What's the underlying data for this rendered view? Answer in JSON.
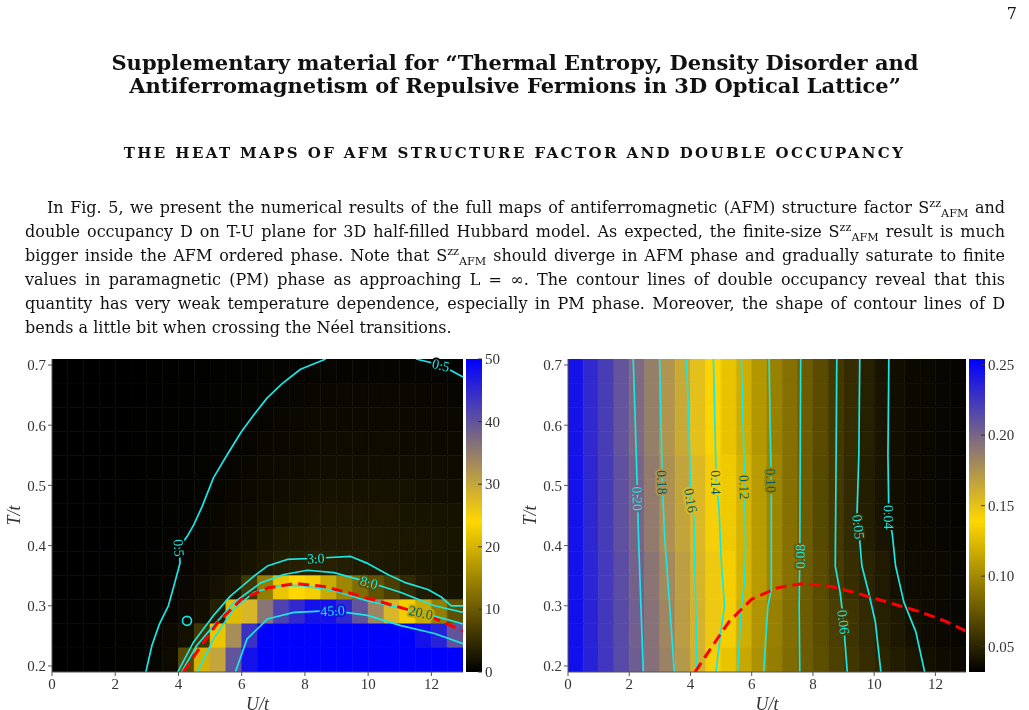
{
  "chart_data": [
    {
      "type": "heatmap",
      "title": "Supplementary material for “Thermal Entropy, Density Disorder and Antiferromagnetism of Repulsive Fermions in 3D Optical Lattice”",
      "subtitle": "THE HEAT MAPS OF AFM STRUCTURE FACTOR AND DOUBLE OCCUPANCY",
      "annotations": [
        "7",
        "In Fig. 5, we present the numerical results of the full maps of antiferromagnetic (AFM) structure factor S$^{zz}$$_{AFM}$ and double occupancy D on T-U plane for 3D half-filled Hubbard model. As expected, the finite-size S$^{zz}$$_{AFM}$ result is much bigger inside the AFM ordered phase. Note that S$^{zz}$$_{AFM}$ should diverge in AFM phase and gradually saturate to finite values in paramagnetic (PM) phase as approaching L = ∞. The contour lines of double occupancy reveal that this quantity has very weak temperature dependence, especially in PM phase. Moreover, the shape of contour lines of D bends a little bit when crossing the Néel transitions.",
        {
          "text": "0.5",
          "x": 4.02,
          "y": 0.396
        },
        {
          "text": "0.5",
          "x": 12.3,
          "y": 0.7
        },
        {
          "text": "3.0",
          "x": 8.34,
          "y": 0.379
        },
        {
          "text": "8.0",
          "x": 10.03,
          "y": 0.339
        },
        {
          "text": "20.0",
          "x": 11.67,
          "y": 0.289
        },
        {
          "text": "45.0",
          "x": 8.87,
          "y": 0.292
        }
      ],
      "xlabel": "U/t",
      "ylabel": "T/t",
      "x": [
        0.25,
        0.75,
        1.25,
        1.75,
        2.25,
        2.75,
        3.25,
        3.75,
        4.25,
        4.75,
        5.25,
        5.75,
        6.25,
        6.75,
        7.25,
        7.75,
        8.25,
        8.75,
        9.25,
        9.75,
        10.25,
        10.75,
        11.25,
        11.75,
        12.25,
        12.75
      ],
      "cells": [
        [
          0,
          0,
          0,
          0,
          0,
          0,
          0.1,
          0.1,
          0.1,
          0.2,
          0.2,
          0.3,
          0.3,
          0.4,
          0.4,
          0.5,
          0.6,
          0.6,
          0.6,
          0.6,
          0.6,
          0.6,
          0.6,
          0.6,
          0.5,
          0.4
        ],
        [
          0,
          0,
          0,
          0,
          0,
          0,
          0.1,
          0.1,
          0.2,
          0.2,
          0.3,
          0.3,
          0.4,
          0.4,
          0.6,
          0.7,
          0.8,
          0.8,
          0.9,
          0.9,
          0.9,
          0.9,
          0.9,
          0.8,
          0.8,
          0.7
        ],
        [
          0,
          0,
          0,
          0,
          0,
          0.1,
          0.1,
          0.2,
          0.2,
          0.3,
          0.3,
          0.4,
          0.5,
          0.6,
          0.8,
          0.9,
          1.0,
          1.1,
          1.1,
          1.1,
          1.1,
          1.1,
          1.0,
          1.0,
          0.9,
          0.9
        ],
        [
          0,
          0,
          0,
          0,
          0,
          0.1,
          0.1,
          0.2,
          0.2,
          0.3,
          0.4,
          0.5,
          0.6,
          0.8,
          0.9,
          1.1,
          1.2,
          1.3,
          1.3,
          1.3,
          1.3,
          1.3,
          1.2,
          1.2,
          1.1,
          1.1
        ],
        [
          0,
          0,
          0,
          0,
          0.1,
          0.1,
          0.2,
          0.2,
          0.3,
          0.4,
          0.5,
          0.6,
          0.8,
          1.0,
          1.2,
          1.3,
          1.5,
          1.6,
          1.6,
          1.6,
          1.6,
          1.6,
          1.5,
          1.5,
          1.4,
          1.3
        ],
        [
          0,
          0,
          0,
          0,
          0.1,
          0.1,
          0.2,
          0.3,
          0.3,
          0.4,
          0.6,
          0.8,
          1.0,
          1.2,
          1.5,
          1.7,
          1.9,
          2.0,
          2.0,
          2.0,
          2.0,
          1.9,
          1.9,
          1.8,
          1.7,
          1.6
        ],
        [
          0,
          0,
          0,
          0,
          0.1,
          0.1,
          0.2,
          0.3,
          0.4,
          0.6,
          0.8,
          1.0,
          1.3,
          1.6,
          1.9,
          2.2,
          2.4,
          2.5,
          2.5,
          2.5,
          2.5,
          2.4,
          2.3,
          2.2,
          2.1,
          2.0
        ],
        [
          0,
          0,
          0,
          0,
          0.1,
          0.1,
          0.2,
          0.3,
          0.5,
          0.7,
          0.9,
          1.2,
          1.6,
          2.0,
          2.4,
          2.6,
          2.8,
          2.8,
          2.8,
          2.8,
          2.7,
          2.6,
          2.5,
          2.4,
          2.3,
          2.2
        ],
        [
          0,
          0,
          0,
          0.1,
          0.1,
          0.2,
          0.3,
          0.4,
          0.6,
          0.9,
          1.2,
          1.6,
          2.1,
          2.6,
          3.2,
          3.5,
          3.7,
          3.6,
          3.4,
          3.0,
          2.8,
          2.6,
          2.4,
          2.3,
          2.2,
          2.1
        ],
        [
          0,
          0,
          0,
          0.1,
          0.1,
          0.2,
          0.3,
          0.5,
          0.8,
          1.2,
          1.8,
          2.5,
          6,
          14,
          22,
          24,
          23,
          19,
          15,
          12,
          9,
          7,
          4.5,
          3,
          2.4,
          2.1
        ],
        [
          0,
          0,
          0,
          0.1,
          0.2,
          0.3,
          0.4,
          0.6,
          1.0,
          1.6,
          3.5,
          21,
          28,
          36,
          42,
          45,
          48,
          48,
          45,
          40,
          34,
          28,
          23,
          19,
          14,
          9
        ],
        [
          0,
          0,
          0,
          0.1,
          0.2,
          0.3,
          0.6,
          1.0,
          1.8,
          6,
          22,
          33,
          44,
          50,
          50,
          50,
          50,
          50,
          50,
          50,
          50,
          50,
          50,
          48,
          46,
          40
        ],
        [
          0,
          0,
          0,
          0.1,
          0.2,
          0.3,
          0.6,
          1.2,
          8,
          20,
          30,
          40,
          48,
          50,
          50,
          50,
          50,
          50,
          50,
          50,
          50,
          50,
          50,
          50,
          50,
          50
        ]
      ],
      "clim": [
        0,
        50
      ],
      "cticks": [
        0,
        10,
        20,
        30,
        40,
        50
      ],
      "xlim": [
        0,
        13
      ],
      "ylim": [
        0.19,
        0.71
      ],
      "xticks": [
        0,
        2,
        4,
        6,
        8,
        10,
        12
      ],
      "yticks": [
        0.2,
        0.3,
        0.4,
        0.5,
        0.6,
        0.7
      ],
      "series": [
        {
          "type": "line",
          "color": "#19e6e6",
          "x": [
            2.97,
            3.16,
            3.4,
            3.68,
            3.84,
            4.05,
            4.02,
            4.27,
            4.48,
            4.74,
            5.11,
            5.54,
            6.0,
            6.38,
            6.8,
            7.28,
            7.86,
            8.66
          ],
          "values": [
            0.19,
            0.234,
            0.27,
            0.3,
            0.33,
            0.371,
            0.396,
            0.415,
            0.434,
            0.464,
            0.513,
            0.551,
            0.59,
            0.617,
            0.645,
            0.669,
            0.693,
            0.71
          ]
        },
        {
          "type": "line",
          "color": "#19e6e6",
          "x": [
            11.51,
            12.3,
            13
          ],
          "values": [
            0.71,
            0.7,
            0.68
          ]
        },
        {
          "type": "scatter",
          "color": "#19e6e6",
          "marker": "circle",
          "x": [
            4.27
          ],
          "values": [
            0.275
          ]
        },
        {
          "type": "line",
          "color": "#19e6e6",
          "x": [
            3.98,
            4.48,
            5.11,
            5.64,
            6.38,
            6.81,
            7.44,
            8.34,
            9.45,
            10.0,
            10.62,
            11.2,
            11.89,
            12.3,
            12.63,
            13
          ],
          "values": [
            0.19,
            0.24,
            0.284,
            0.316,
            0.349,
            0.366,
            0.377,
            0.379,
            0.382,
            0.37,
            0.352,
            0.338,
            0.327,
            0.315,
            0.3,
            0.3
          ]
        },
        {
          "type": "line",
          "color": "#19e6e6",
          "x": [
            4.1,
            4.58,
            5.11,
            5.75,
            6.6,
            7.33,
            8.08,
            8.92,
            10.03,
            11.04,
            12.1,
            13
          ],
          "values": [
            0.19,
            0.234,
            0.267,
            0.305,
            0.338,
            0.352,
            0.359,
            0.355,
            0.339,
            0.322,
            0.3,
            0.289
          ]
        },
        {
          "type": "line",
          "color": "#19e6e6",
          "x": [
            4.6,
            5.11,
            5.75,
            6.38,
            7.12,
            7.86,
            8.92,
            9.98,
            11.67,
            13
          ],
          "values": [
            0.19,
            0.245,
            0.295,
            0.322,
            0.333,
            0.334,
            0.325,
            0.308,
            0.289,
            0.27
          ]
        },
        {
          "type": "line",
          "color": "#19e6e6",
          "x": [
            5.8,
            6.17,
            6.81,
            7.65,
            8.87,
            9.98,
            11.04,
            12.1,
            13
          ],
          "values": [
            0.19,
            0.245,
            0.278,
            0.289,
            0.292,
            0.284,
            0.267,
            0.254,
            0.237
          ]
        },
        {
          "type": "line",
          "color": "#ff0000",
          "line_style": "dashed",
          "x": [
            4.15,
            4.7,
            5.25,
            6.0,
            6.85,
            7.7,
            8.6,
            9.5,
            10.5,
            11.5,
            12.3,
            13
          ],
          "values": [
            0.19,
            0.232,
            0.273,
            0.311,
            0.33,
            0.337,
            0.332,
            0.32,
            0.305,
            0.29,
            0.275,
            0.258
          ]
        }
      ]
    },
    {
      "type": "heatmap",
      "annotations": [
        {
          "text": "0.20",
          "x": 2.27,
          "y": 0.478
        },
        {
          "text": "0.18",
          "x": 3.08,
          "y": 0.505
        },
        {
          "text": "0.16",
          "x": 4.02,
          "y": 0.475
        },
        {
          "text": "0.14",
          "x": 4.84,
          "y": 0.505
        },
        {
          "text": "0.12",
          "x": 5.77,
          "y": 0.497
        },
        {
          "text": "0.10",
          "x": 6.64,
          "y": 0.508
        },
        {
          "text": "0.08",
          "x": 7.58,
          "y": 0.382
        },
        {
          "text": "0.06",
          "x": 9.0,
          "y": 0.273
        },
        {
          "text": "0.05",
          "x": 9.49,
          "y": 0.431
        },
        {
          "text": "0.04",
          "x": 10.48,
          "y": 0.447
        }
      ],
      "xlabel": "U/t",
      "ylabel": "T/t",
      "x": [
        0.25,
        0.75,
        1.25,
        1.75,
        2.25,
        2.75,
        3.25,
        3.75,
        4.25,
        4.75,
        5.25,
        5.75,
        6.25,
        6.75,
        7.25,
        7.75,
        8.25,
        8.75,
        9.25,
        9.75,
        10.25,
        10.75,
        11.25,
        11.75,
        12.25,
        12.75
      ],
      "cells": [
        [
          0.244,
          0.232,
          0.221,
          0.209,
          0.197,
          0.186,
          0.174,
          0.163,
          0.151,
          0.14,
          0.129,
          0.118,
          0.107,
          0.096,
          0.087,
          0.077,
          0.069,
          0.06,
          0.054,
          0.048,
          0.042,
          0.039,
          0.037,
          0.036,
          0.035,
          0.034
        ],
        [
          0.244,
          0.232,
          0.221,
          0.209,
          0.197,
          0.186,
          0.174,
          0.163,
          0.151,
          0.14,
          0.129,
          0.118,
          0.107,
          0.096,
          0.087,
          0.077,
          0.069,
          0.06,
          0.054,
          0.048,
          0.042,
          0.039,
          0.037,
          0.036,
          0.035,
          0.034
        ],
        [
          0.244,
          0.232,
          0.221,
          0.209,
          0.197,
          0.186,
          0.174,
          0.163,
          0.151,
          0.14,
          0.129,
          0.118,
          0.107,
          0.096,
          0.087,
          0.077,
          0.069,
          0.06,
          0.054,
          0.048,
          0.042,
          0.039,
          0.037,
          0.036,
          0.035,
          0.034
        ],
        [
          0.244,
          0.232,
          0.221,
          0.209,
          0.197,
          0.186,
          0.174,
          0.163,
          0.151,
          0.14,
          0.129,
          0.118,
          0.107,
          0.096,
          0.087,
          0.077,
          0.069,
          0.06,
          0.054,
          0.048,
          0.042,
          0.039,
          0.037,
          0.036,
          0.035,
          0.034
        ],
        [
          0.245,
          0.233,
          0.222,
          0.211,
          0.2,
          0.188,
          0.176,
          0.166,
          0.155,
          0.143,
          0.132,
          0.121,
          0.109,
          0.098,
          0.087,
          0.077,
          0.068,
          0.06,
          0.053,
          0.047,
          0.042,
          0.039,
          0.037,
          0.036,
          0.035,
          0.034
        ],
        [
          0.245,
          0.233,
          0.222,
          0.211,
          0.2,
          0.188,
          0.176,
          0.166,
          0.155,
          0.143,
          0.132,
          0.121,
          0.109,
          0.098,
          0.087,
          0.077,
          0.068,
          0.06,
          0.053,
          0.047,
          0.042,
          0.039,
          0.037,
          0.036,
          0.035,
          0.034
        ],
        [
          0.245,
          0.233,
          0.222,
          0.211,
          0.2,
          0.188,
          0.176,
          0.166,
          0.155,
          0.143,
          0.132,
          0.121,
          0.109,
          0.098,
          0.087,
          0.077,
          0.068,
          0.06,
          0.053,
          0.047,
          0.042,
          0.039,
          0.037,
          0.036,
          0.035,
          0.034
        ],
        [
          0.245,
          0.233,
          0.222,
          0.211,
          0.2,
          0.188,
          0.176,
          0.166,
          0.155,
          0.143,
          0.132,
          0.121,
          0.109,
          0.098,
          0.087,
          0.077,
          0.068,
          0.06,
          0.053,
          0.047,
          0.042,
          0.039,
          0.037,
          0.036,
          0.035,
          0.034
        ],
        [
          0.245,
          0.234,
          0.223,
          0.213,
          0.202,
          0.191,
          0.18,
          0.169,
          0.157,
          0.146,
          0.134,
          0.121,
          0.109,
          0.098,
          0.087,
          0.077,
          0.069,
          0.061,
          0.055,
          0.05,
          0.045,
          0.04,
          0.038,
          0.037,
          0.036,
          0.035
        ],
        [
          0.245,
          0.234,
          0.223,
          0.213,
          0.202,
          0.191,
          0.18,
          0.169,
          0.157,
          0.146,
          0.134,
          0.121,
          0.109,
          0.098,
          0.087,
          0.077,
          0.069,
          0.061,
          0.055,
          0.05,
          0.045,
          0.04,
          0.038,
          0.037,
          0.036,
          0.035
        ],
        [
          0.246,
          0.235,
          0.224,
          0.214,
          0.203,
          0.193,
          0.182,
          0.17,
          0.158,
          0.147,
          0.134,
          0.118,
          0.106,
          0.095,
          0.086,
          0.077,
          0.07,
          0.063,
          0.058,
          0.053,
          0.048,
          0.044,
          0.04,
          0.038,
          0.036,
          0.035
        ],
        [
          0.246,
          0.235,
          0.224,
          0.214,
          0.203,
          0.193,
          0.182,
          0.17,
          0.158,
          0.147,
          0.134,
          0.118,
          0.106,
          0.095,
          0.086,
          0.077,
          0.07,
          0.063,
          0.058,
          0.053,
          0.048,
          0.044,
          0.04,
          0.038,
          0.036,
          0.035
        ],
        [
          0.246,
          0.236,
          0.225,
          0.214,
          0.204,
          0.194,
          0.184,
          0.172,
          0.159,
          0.143,
          0.129,
          0.115,
          0.104,
          0.094,
          0.085,
          0.077,
          0.071,
          0.064,
          0.059,
          0.054,
          0.05,
          0.046,
          0.043,
          0.04,
          0.038,
          0.036
        ]
      ],
      "clim": [
        0.032,
        0.254
      ],
      "cticks": [
        0.05,
        {
          "value": 0.1,
          "label": "0.10"
        },
        0.15,
        {
          "value": 0.2,
          "label": "0.20"
        },
        0.25
      ],
      "xlim": [
        0,
        13
      ],
      "ylim": [
        0.19,
        0.71
      ],
      "xticks": [
        0,
        2,
        4,
        6,
        8,
        10,
        12
      ],
      "yticks": [
        0.2,
        0.3,
        0.4,
        0.5,
        0.6,
        0.7
      ],
      "series": [
        {
          "type": "line",
          "color": "#19e6e6",
          "x": [
            2.13,
            2.2,
            2.27,
            2.3,
            2.36,
            2.46
          ],
          "values": [
            0.71,
            0.6,
            0.48,
            0.42,
            0.33,
            0.19
          ]
        },
        {
          "type": "line",
          "color": "#19e6e6",
          "x": [
            2.99,
            3.04,
            3.08,
            3.15,
            3.25,
            3.35,
            3.47
          ],
          "values": [
            0.71,
            0.6,
            0.505,
            0.42,
            0.35,
            0.28,
            0.19
          ]
        },
        {
          "type": "line",
          "color": "#19e6e6",
          "x": [
            3.87,
            3.95,
            4.01,
            4.11,
            4.15,
            4.18,
            4.21
          ],
          "values": [
            0.71,
            0.6,
            0.475,
            0.447,
            0.35,
            0.28,
            0.19
          ]
        },
        {
          "type": "line",
          "color": "#19e6e6",
          "x": [
            4.75,
            4.8,
            4.84,
            4.93,
            5.0,
            5.11,
            5.0,
            4.83
          ],
          "values": [
            0.71,
            0.6,
            0.505,
            0.464,
            0.38,
            0.3,
            0.26,
            0.19
          ]
        },
        {
          "type": "line",
          "color": "#19e6e6",
          "x": [
            5.66,
            5.72,
            5.77,
            5.8,
            5.77,
            5.66,
            5.54
          ],
          "values": [
            0.71,
            0.6,
            0.497,
            0.4,
            0.34,
            0.3,
            0.19
          ]
        },
        {
          "type": "line",
          "color": "#19e6e6",
          "x": [
            6.57,
            6.6,
            6.64,
            6.64,
            6.53,
            6.39
          ],
          "values": [
            0.71,
            0.6,
            0.508,
            0.327,
            0.3,
            0.19
          ]
        },
        {
          "type": "line",
          "color": "#19e6e6",
          "x": [
            7.6,
            7.58,
            7.57,
            7.55,
            7.57
          ],
          "values": [
            0.71,
            0.5,
            0.382,
            0.3,
            0.19
          ]
        },
        {
          "type": "line",
          "color": "#19e6e6",
          "x": [
            8.78,
            8.75,
            8.73,
            8.89,
            9.0,
            9.12
          ],
          "values": [
            0.71,
            0.5,
            0.366,
            0.322,
            0.273,
            0.19
          ]
        },
        {
          "type": "line",
          "color": "#19e6e6",
          "x": [
            9.53,
            9.5,
            9.44,
            9.49,
            9.6,
            9.82,
            10.04,
            10.22
          ],
          "values": [
            0.71,
            0.55,
            0.453,
            0.431,
            0.366,
            0.322,
            0.273,
            0.19
          ]
        },
        {
          "type": "line",
          "color": "#19e6e6",
          "x": [
            10.48,
            10.45,
            10.48,
            10.59,
            10.7,
            10.97,
            11.36,
            11.65
          ],
          "values": [
            0.71,
            0.55,
            0.447,
            0.42,
            0.366,
            0.306,
            0.257,
            0.19
          ]
        },
        {
          "type": "line",
          "color": "#ff0000",
          "line_style": "dashed",
          "x": [
            4.15,
            4.7,
            5.25,
            6.0,
            6.85,
            7.7,
            8.6,
            9.5,
            10.5,
            11.5,
            12.3,
            13
          ],
          "values": [
            0.19,
            0.232,
            0.273,
            0.311,
            0.33,
            0.337,
            0.332,
            0.32,
            0.305,
            0.29,
            0.275,
            0.258
          ]
        }
      ]
    }
  ]
}
